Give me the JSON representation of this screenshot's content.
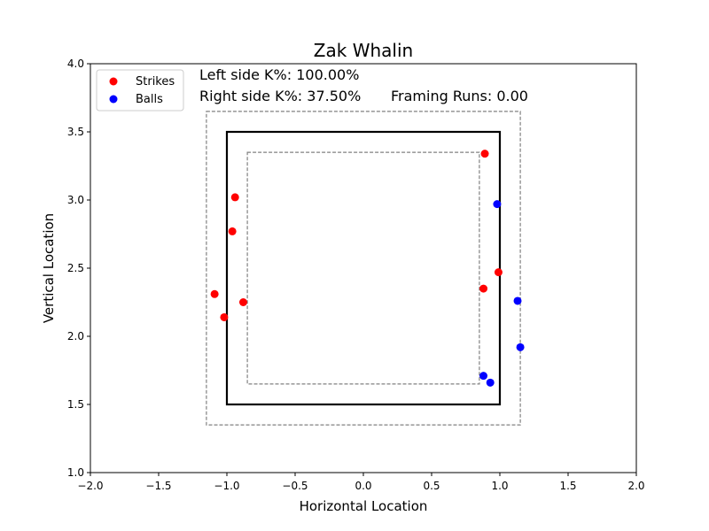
{
  "chart_data": {
    "type": "scatter",
    "title": "Zak Whalin",
    "xlabel": "Horizontal Location",
    "ylabel": "Vertical Location",
    "xlim": [
      -2.0,
      2.0
    ],
    "ylim": [
      1.0,
      4.0
    ],
    "xticks": [
      "−2.0",
      "−1.5",
      "−1.0",
      "−0.5",
      "0.0",
      "0.5",
      "1.0",
      "1.5",
      "2.0"
    ],
    "yticks": [
      "1.0",
      "1.5",
      "2.0",
      "2.5",
      "3.0",
      "3.5",
      "4.0"
    ],
    "grid": false,
    "legend_position": "top-left",
    "annotations": {
      "left_k": "Left side K%: 100.00%",
      "right_k": "Right side K%: 37.50%",
      "framing_runs": "Framing Runs: 0.00"
    },
    "strike_zone": {
      "x": [
        -1.0,
        1.0
      ],
      "y": [
        1.5,
        3.5
      ]
    },
    "outer_zone": {
      "x": [
        -1.15,
        1.15
      ],
      "y": [
        1.35,
        3.65
      ]
    },
    "inner_zone": {
      "x": [
        -0.85,
        0.85
      ],
      "y": [
        1.65,
        3.35
      ]
    },
    "series": [
      {
        "name": "Strikes",
        "color": "#ff0000",
        "points": [
          [
            0.89,
            3.34
          ],
          [
            -0.94,
            3.02
          ],
          [
            -0.96,
            2.77
          ],
          [
            0.99,
            2.47
          ],
          [
            0.88,
            2.35
          ],
          [
            -1.09,
            2.31
          ],
          [
            -0.88,
            2.25
          ],
          [
            -1.02,
            2.14
          ]
        ]
      },
      {
        "name": "Balls",
        "color": "#0000ff",
        "points": [
          [
            0.98,
            2.97
          ],
          [
            1.13,
            2.26
          ],
          [
            1.15,
            1.92
          ],
          [
            0.88,
            1.71
          ],
          [
            0.93,
            1.66
          ]
        ]
      }
    ]
  }
}
